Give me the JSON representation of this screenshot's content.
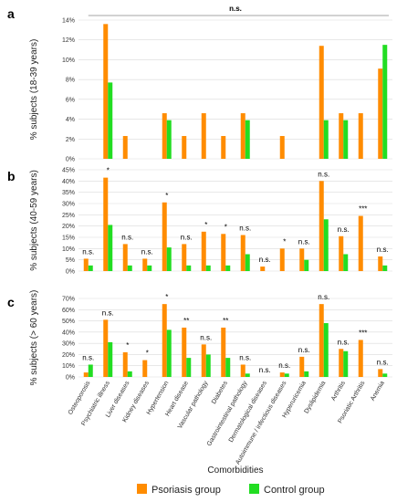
{
  "colors": {
    "psoriasis": "#FF8C00",
    "control": "#22DD22",
    "grid": "#d9d9d9",
    "axis": "#999999"
  },
  "legend": {
    "psoriasis_label": "Psoriasis group",
    "control_label": "Control group"
  },
  "x_title": "Comorbidities",
  "chart_data": [
    {
      "type": "bar",
      "panel": "a",
      "ylabel": "% subjects (18-39 years)",
      "ylim": [
        0,
        14
      ],
      "yticks": [
        "0%",
        "2%",
        "4%",
        "6%",
        "8%",
        "10%",
        "12%",
        "14%"
      ],
      "overall_significance": "n.s.",
      "categories": [
        "Osteoporosis",
        "Psychiatric illness",
        "Liver diseases",
        "Kidney diseases",
        "Hypertension",
        "Heart disease",
        "Vascular pathology",
        "Diabetes",
        "Gastrointestinal pathology",
        "Dermatological diseases",
        "Autoimmune / infectious diseases",
        "Hyperuricemia",
        "Dyslipidemia",
        "Arthritis",
        "Psoriatic Arthritis",
        "Anemia"
      ],
      "series": [
        {
          "name": "Psoriasis group",
          "values": [
            0,
            13.6,
            2.3,
            0,
            4.6,
            2.3,
            4.6,
            2.3,
            4.6,
            0,
            2.3,
            0,
            11.4,
            4.6,
            4.6,
            9.1
          ]
        },
        {
          "name": "Control group",
          "values": [
            0,
            7.7,
            0,
            0,
            3.9,
            0,
            0,
            0,
            3.9,
            0,
            0,
            0,
            3.9,
            3.9,
            0,
            11.5
          ]
        }
      ],
      "significance": []
    },
    {
      "type": "bar",
      "panel": "b",
      "ylabel": "% subjects (40-59 years)",
      "ylim": [
        0,
        45
      ],
      "yticks": [
        "0%",
        "5%",
        "10%",
        "15%",
        "20%",
        "25%",
        "30%",
        "35%",
        "40%",
        "45%"
      ],
      "categories": [
        "Osteoporosis",
        "Psychiatric illness",
        "Liver diseases",
        "Kidney diseases",
        "Hypertension",
        "Heart disease",
        "Vascular pathology",
        "Diabetes",
        "Gastrointestinal pathology",
        "Dermatological diseases",
        "Autoimmune / infectious diseases",
        "Hyperuricemia",
        "Dyslipidemia",
        "Arthritis",
        "Psoriatic Arthritis",
        "Anemia"
      ],
      "series": [
        {
          "name": "Psoriasis group",
          "values": [
            5.5,
            41.5,
            12,
            5.5,
            30.5,
            12,
            17.5,
            16.5,
            16,
            2,
            10,
            10,
            40,
            15.5,
            24.5,
            6.5
          ]
        },
        {
          "name": "Control group",
          "values": [
            2.5,
            20.5,
            2.5,
            2.5,
            10.5,
            2.5,
            2.5,
            2.5,
            7.5,
            0,
            0,
            5,
            23,
            7.5,
            0,
            2.5
          ]
        }
      ],
      "significance": [
        "n.s.",
        "*",
        "n.s.",
        "n.s.",
        "*",
        "n.s.",
        "*",
        "*",
        "n.s.",
        "n.s.",
        "*",
        "n.s.",
        "n.s.",
        "n.s.",
        "***",
        "n.s."
      ]
    },
    {
      "type": "bar",
      "panel": "c",
      "ylabel": "% subjects (> 60 years)",
      "ylim": [
        0,
        70
      ],
      "yticks": [
        "0%",
        "10%",
        "20%",
        "30%",
        "40%",
        "50%",
        "60%",
        "70%"
      ],
      "categories": [
        "Osteoporosis",
        "Psychiatric illness",
        "Liver diseases",
        "Kidney diseases",
        "Hypertension",
        "Heart disease",
        "Vascular pathology",
        "Diabetes",
        "Gastrointestinal pathology",
        "Dermatological diseases",
        "Autoimmune / infectious diseases",
        "Hyperuricemia",
        "Dyslipidemia",
        "Arthritis",
        "Psoriatic Arthritis",
        "Anemia"
      ],
      "series": [
        {
          "name": "Psoriasis group",
          "values": [
            4,
            51,
            22,
            15,
            65,
            44,
            29,
            44,
            11,
            0,
            4,
            18,
            65,
            25,
            33,
            7
          ]
        },
        {
          "name": "Control group",
          "values": [
            11,
            31,
            5,
            0,
            42,
            17,
            20,
            17,
            3,
            0,
            3,
            5,
            48,
            23,
            0,
            3
          ]
        }
      ],
      "significance": [
        "n.s.",
        "n.s.",
        "*",
        "*",
        "*",
        "**",
        "n.s.",
        "**",
        "n.s.",
        "n.s.",
        "n.s.",
        "n.s.",
        "n.s.",
        "n.s.",
        "***",
        "n.s."
      ]
    }
  ]
}
